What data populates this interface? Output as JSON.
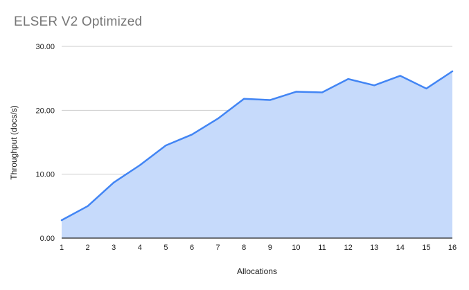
{
  "title": "ELSER V2 Optimized",
  "chart_data": {
    "type": "area",
    "title": "ELSER V2 Optimized",
    "xlabel": "Allocations",
    "ylabel": "Throughput (docs/s)",
    "x": [
      1,
      2,
      3,
      4,
      5,
      6,
      7,
      8,
      9,
      10,
      11,
      12,
      13,
      14,
      15,
      16
    ],
    "values": [
      2.8,
      5.0,
      8.7,
      11.4,
      14.5,
      16.2,
      18.7,
      21.8,
      21.6,
      22.9,
      22.8,
      24.9,
      23.9,
      25.4,
      23.4,
      26.1
    ],
    "ylim": [
      0,
      30
    ],
    "yticks": [
      0,
      10,
      20,
      30
    ],
    "ytick_labels": [
      "0.00",
      "10.00",
      "20.00",
      "30.00"
    ],
    "grid": true,
    "legend": "none",
    "colors": {
      "line": "#4285f4",
      "fill": "#c6dafb",
      "gridline": "#cccccc",
      "axis_line": "#222222",
      "title_text": "#757575",
      "tick_text": "#1a1a1a",
      "axis_title_text": "#1a1a1a",
      "background": "#ffffff"
    }
  }
}
